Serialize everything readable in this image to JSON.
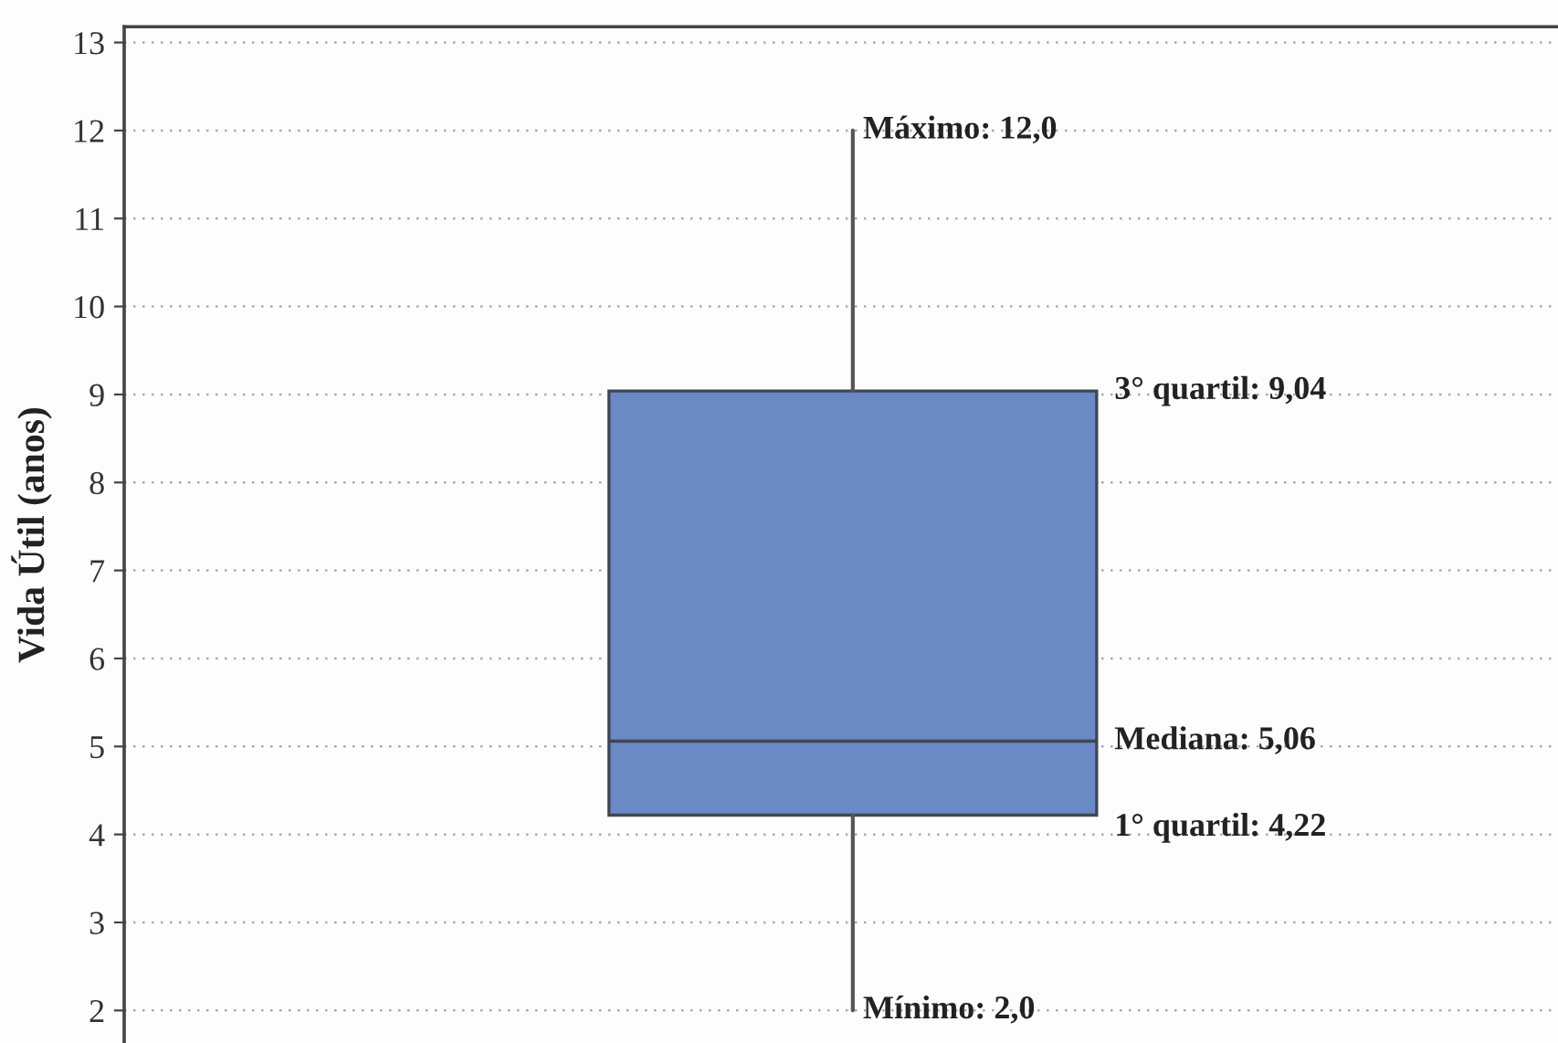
{
  "chart_data": {
    "type": "box",
    "ylabel": "Vida Útil (anos)",
    "categories": [
      null
    ],
    "boxes": [
      {
        "low": 2.0,
        "q1": 4.22,
        "median": 5.06,
        "q3": 9.04,
        "high": 12.0
      }
    ],
    "color": "#6a8ac6",
    "ylim": [
      1.63,
      13.18
    ],
    "yticks": [
      2,
      3,
      4,
      5,
      6,
      7,
      8,
      9,
      10,
      11,
      12,
      13
    ],
    "grid": "y",
    "annotations": [
      "Máximo: 12,0",
      "3° quartil: 9,04",
      "Mediana: 5,06",
      "1° quartil: 4,22",
      "Mínimo: 2,0"
    ]
  }
}
